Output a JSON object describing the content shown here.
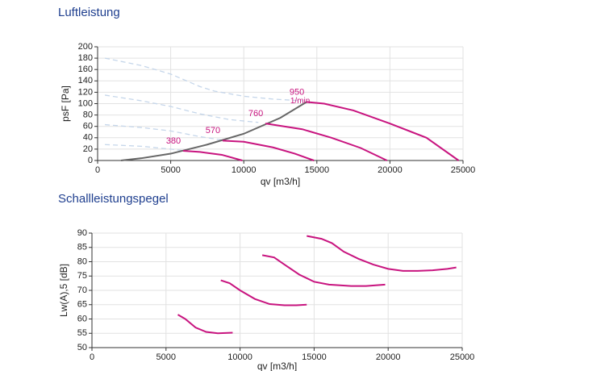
{
  "chart_data": [
    {
      "type": "line",
      "title": "Luftleistung",
      "x_label": "qv [m3/h]",
      "y_label": "psF [Pa]",
      "xlim": [
        0,
        25000
      ],
      "xticks": [
        0,
        5000,
        10000,
        15000,
        20000,
        25000
      ],
      "ylim": [
        0,
        200
      ],
      "yticks": [
        0,
        20,
        40,
        60,
        80,
        100,
        120,
        140,
        160,
        180,
        200
      ],
      "grid": true,
      "unit_label": "1/min",
      "series": [
        {
          "color": "#c5d6ea",
          "dash": true,
          "x": [
            500,
            3000,
            5000,
            7000,
            8000,
            10000,
            12000,
            14000
          ],
          "values": [
            180,
            167,
            152,
            130,
            122,
            113,
            108,
            105
          ]
        },
        {
          "color": "#c5d6ea",
          "dash": true,
          "x": [
            500,
            3000,
            5000,
            7000,
            9000,
            11000
          ],
          "values": [
            115,
            105,
            95,
            82,
            72,
            67
          ]
        },
        {
          "color": "#c5d6ea",
          "dash": true,
          "x": [
            500,
            3000,
            5000,
            7000,
            8500
          ],
          "values": [
            63,
            58,
            52,
            42,
            36
          ]
        },
        {
          "color": "#c5d6ea",
          "dash": true,
          "x": [
            500,
            3000,
            5000,
            6000
          ],
          "values": [
            28,
            25,
            20,
            17
          ]
        },
        {
          "color": "#666666",
          "x": [
            1600,
            3000,
            5000,
            7500,
            10000,
            12500,
            14300
          ],
          "values": [
            0,
            4,
            12,
            28,
            47,
            75,
            103
          ]
        },
        {
          "name": "380",
          "color": "#c8147f",
          "x": [
            5850,
            7000,
            8500,
            9900
          ],
          "values": [
            17,
            15,
            10,
            0
          ]
        },
        {
          "name": "570",
          "color": "#c8147f",
          "x": [
            8550,
            10000,
            12000,
            13500,
            14800
          ],
          "values": [
            35,
            33,
            23,
            12,
            0
          ]
        },
        {
          "name": "760",
          "color": "#c8147f",
          "x": [
            11480,
            14000,
            16000,
            18000,
            19800
          ],
          "values": [
            65,
            55,
            40,
            22,
            0
          ]
        },
        {
          "name": "950",
          "color": "#c8147f",
          "x": [
            14300,
            15500,
            17500,
            20000,
            22500,
            24700
          ],
          "values": [
            103,
            100,
            88,
            65,
            40,
            0
          ]
        }
      ]
    },
    {
      "type": "line",
      "title": "Schallleistungspegel",
      "x_label": "qv [m3/h]",
      "y_label": "Lw(A),5 [dB]",
      "xlim": [
        0,
        25000
      ],
      "xticks": [
        0,
        5000,
        10000,
        15000,
        20000,
        25000
      ],
      "ylim": [
        50,
        90
      ],
      "yticks": [
        50,
        55,
        60,
        65,
        70,
        75,
        80,
        85,
        90
      ],
      "grid": true,
      "series": [
        {
          "color": "#c8147f",
          "x": [
            5800,
            6300,
            7000,
            7700,
            8500,
            9500
          ],
          "values": [
            61.5,
            60,
            57,
            55.5,
            55,
            55.2
          ]
        },
        {
          "color": "#c8147f",
          "x": [
            8700,
            9300,
            10000,
            11000,
            12000,
            13000,
            13800,
            14500
          ],
          "values": [
            73.5,
            72.5,
            70,
            67,
            65.2,
            64.8,
            64.8,
            65
          ]
        },
        {
          "color": "#c8147f",
          "x": [
            11500,
            12300,
            13000,
            14000,
            15000,
            16000,
            17500,
            18500,
            19800
          ],
          "values": [
            82.3,
            81.5,
            79,
            75.5,
            73,
            72,
            71.5,
            71.5,
            72
          ]
        },
        {
          "color": "#c8147f",
          "x": [
            14500,
            15500,
            16200,
            17000,
            18000,
            19000,
            20000,
            21000,
            22000,
            23000,
            24000,
            24600
          ],
          "values": [
            89,
            88,
            86.5,
            83.5,
            81,
            79,
            77.5,
            76.8,
            76.8,
            77,
            77.5,
            78
          ]
        }
      ]
    }
  ]
}
